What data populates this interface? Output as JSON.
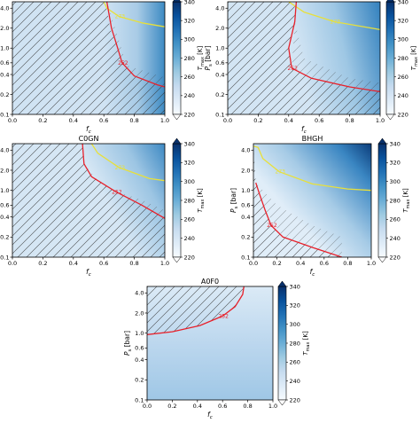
{
  "colorbar": {
    "label": "T_max [K]",
    "label_main": "T",
    "label_sub": "max",
    "label_unit": " [K]",
    "ticks": [
      "220",
      "240",
      "260",
      "280",
      "300",
      "320",
      "340"
    ],
    "range": [
      220,
      340
    ],
    "colors": [
      "#f7fbff",
      "#deebf7",
      "#c6dbef",
      "#9ecae1",
      "#6baed6",
      "#4292c6",
      "#2171b5",
      "#08519c",
      "#08306b"
    ]
  },
  "axes": {
    "xlabel_main": "f",
    "xlabel_sub": "c",
    "ylabel_main": "P",
    "ylabel_sub": "s",
    "ylabel_unit": " [bar]",
    "xticks": [
      "0.0",
      "0.2",
      "0.4",
      "0.6",
      "0.8",
      "1.0"
    ],
    "yticks": [
      "0.1",
      "0.2",
      "0.4",
      "0.6",
      "1.0",
      "2.0",
      "4.0"
    ]
  },
  "contour_colors": {
    "red": "#e8202a",
    "yellow": "#e8e03a"
  },
  "chart_data": [
    {
      "type": "heatmap",
      "title": "",
      "xlim": [
        0,
        1
      ],
      "ylim": [
        0.1,
        5
      ],
      "yscale": "log",
      "contours": [
        {
          "level": "273",
          "color": "yellow",
          "points": [
            [
              0.6,
              5.0
            ],
            [
              0.62,
              4.0
            ],
            [
              0.7,
              3.0
            ],
            [
              0.85,
              2.4
            ],
            [
              1.0,
              2.1
            ]
          ]
        },
        {
          "level": "252",
          "color": "red",
          "points": [
            [
              0.62,
              5.0
            ],
            [
              0.65,
              2.0
            ],
            [
              0.68,
              1.2
            ],
            [
              0.72,
              0.6
            ],
            [
              0.8,
              0.38
            ],
            [
              0.95,
              0.28
            ],
            [
              1.0,
              0.26
            ]
          ]
        }
      ]
    },
    {
      "type": "heatmap",
      "title": "",
      "xlim": [
        0,
        1
      ],
      "ylim": [
        0.1,
        5
      ],
      "yscale": "log",
      "contours": [
        {
          "level": "273",
          "color": "yellow",
          "points": [
            [
              0.4,
              5.0
            ],
            [
              0.5,
              3.5
            ],
            [
              0.7,
              2.5
            ],
            [
              1.0,
              1.9
            ]
          ]
        },
        {
          "level": "252",
          "color": "red",
          "points": [
            [
              0.45,
              5.0
            ],
            [
              0.44,
              2.5
            ],
            [
              0.4,
              1.0
            ],
            [
              0.42,
              0.5
            ],
            [
              0.55,
              0.35
            ],
            [
              0.8,
              0.26
            ],
            [
              1.0,
              0.22
            ]
          ]
        }
      ]
    },
    {
      "type": "heatmap",
      "title": "C0GN",
      "xlim": [
        0,
        1
      ],
      "ylim": [
        0.1,
        5
      ],
      "yscale": "log",
      "contours": [
        {
          "level": "273",
          "color": "yellow",
          "points": [
            [
              0.52,
              5.0
            ],
            [
              0.56,
              3.6
            ],
            [
              0.7,
              2.2
            ],
            [
              0.9,
              1.5
            ],
            [
              1.0,
              1.4
            ]
          ]
        },
        {
          "level": "252",
          "color": "red",
          "points": [
            [
              0.46,
              5.0
            ],
            [
              0.47,
              2.5
            ],
            [
              0.52,
              1.6
            ],
            [
              0.68,
              0.95
            ],
            [
              0.85,
              0.6
            ],
            [
              1.0,
              0.38
            ]
          ]
        }
      ]
    },
    {
      "type": "heatmap",
      "title": "BHGH",
      "xlim": [
        0,
        1
      ],
      "ylim": [
        0.1,
        5
      ],
      "yscale": "log",
      "contours": [
        {
          "level": "273",
          "color": "yellow",
          "points": [
            [
              0.0,
              4.6
            ],
            [
              0.04,
              4.4
            ],
            [
              0.08,
              3.0
            ],
            [
              0.22,
              1.9
            ],
            [
              0.5,
              1.25
            ],
            [
              0.8,
              1.05
            ],
            [
              1.0,
              1.0
            ]
          ]
        },
        {
          "level": "252",
          "color": "red",
          "points": [
            [
              0.02,
              1.3
            ],
            [
              0.05,
              0.9
            ],
            [
              0.1,
              0.5
            ],
            [
              0.15,
              0.3
            ],
            [
              0.25,
              0.2
            ],
            [
              0.5,
              0.14
            ],
            [
              0.75,
              0.1
            ]
          ]
        }
      ]
    },
    {
      "type": "heatmap",
      "title": "A0F0",
      "xlim": [
        0,
        1
      ],
      "ylim": [
        0.1,
        5
      ],
      "yscale": "log",
      "contours": [
        {
          "level": "252",
          "color": "red",
          "points": [
            [
              0.0,
              0.95
            ],
            [
              0.2,
              1.05
            ],
            [
              0.42,
              1.3
            ],
            [
              0.6,
              1.8
            ],
            [
              0.7,
              2.5
            ],
            [
              0.76,
              3.8
            ],
            [
              0.77,
              5.0
            ]
          ]
        }
      ]
    }
  ]
}
